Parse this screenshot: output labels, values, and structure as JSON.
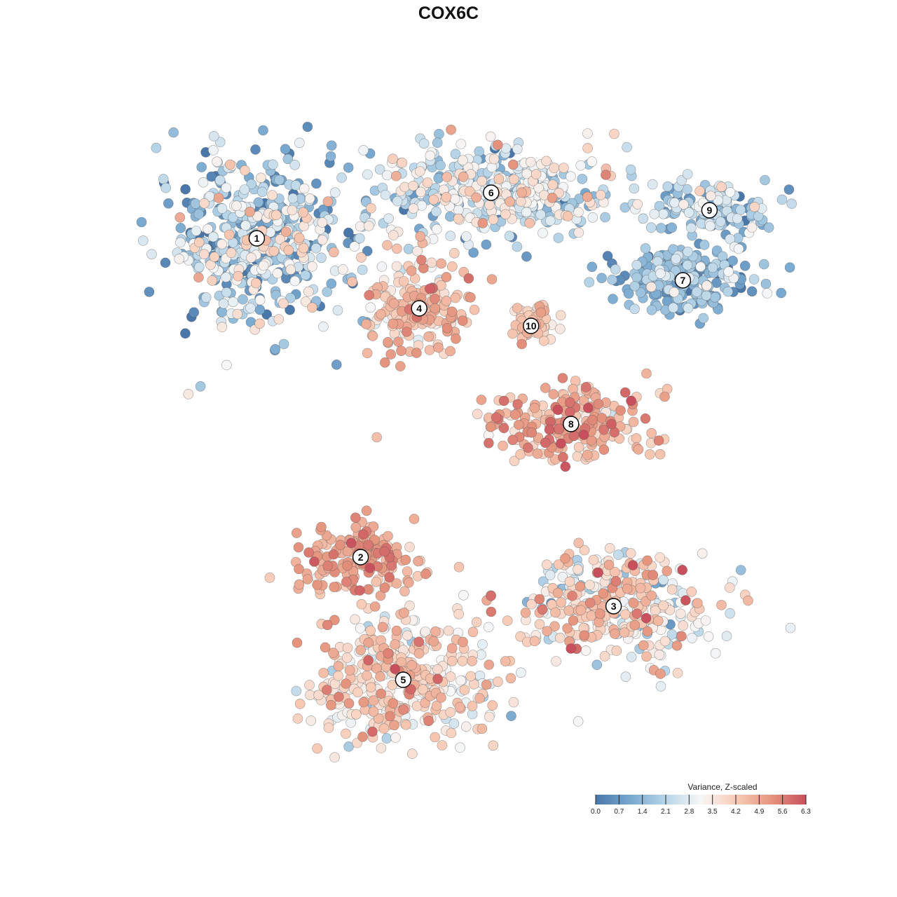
{
  "chart_data": {
    "type": "scatter",
    "title": "COX6C",
    "xlabel": "",
    "ylabel": "",
    "grid": false,
    "legend": {
      "title": "Variance, Z-scaled",
      "position": "bottom-right",
      "range": [
        0.0,
        6.3
      ],
      "ticks": [
        "0.0",
        "0.7",
        "1.4",
        "2.1",
        "2.8",
        "3.5",
        "4.2",
        "4.9",
        "5.6",
        "6.3"
      ],
      "colors": [
        "#4a77aa",
        "#78a9d0",
        "#b7d5e8",
        "#f7f7f7",
        "#f8cbb6",
        "#e6967f",
        "#c8505c"
      ]
    },
    "clusters": [
      {
        "label": "1",
        "x": -7.2,
        "y": 6.0,
        "mean": 1.9,
        "spread": 2.6,
        "n": 520
      },
      {
        "label": "2",
        "x": -3.3,
        "y": -3.1,
        "mean": 4.8,
        "spread": 1.2,
        "n": 170
      },
      {
        "label": "3",
        "x": 6.2,
        "y": -4.5,
        "mean": 3.6,
        "spread": 2.2,
        "n": 360
      },
      {
        "label": "4",
        "x": -1.1,
        "y": 4.0,
        "mean": 4.3,
        "spread": 1.4,
        "n": 190
      },
      {
        "label": "5",
        "x": -1.7,
        "y": -6.6,
        "mean": 3.9,
        "spread": 1.8,
        "n": 380
      },
      {
        "label": "6",
        "x": 1.6,
        "y": 7.3,
        "mean": 2.5,
        "spread": 2.0,
        "n": 420
      },
      {
        "label": "7",
        "x": 8.8,
        "y": 4.8,
        "mean": 1.4,
        "spread": 1.6,
        "n": 220
      },
      {
        "label": "8",
        "x": 4.6,
        "y": 0.7,
        "mean": 4.7,
        "spread": 1.5,
        "n": 210
      },
      {
        "label": "9",
        "x": 9.8,
        "y": 6.8,
        "mean": 2.0,
        "spread": 1.6,
        "n": 130
      },
      {
        "label": "10",
        "x": 3.1,
        "y": 3.5,
        "mean": 4.1,
        "spread": 1.2,
        "n": 70
      }
    ]
  }
}
